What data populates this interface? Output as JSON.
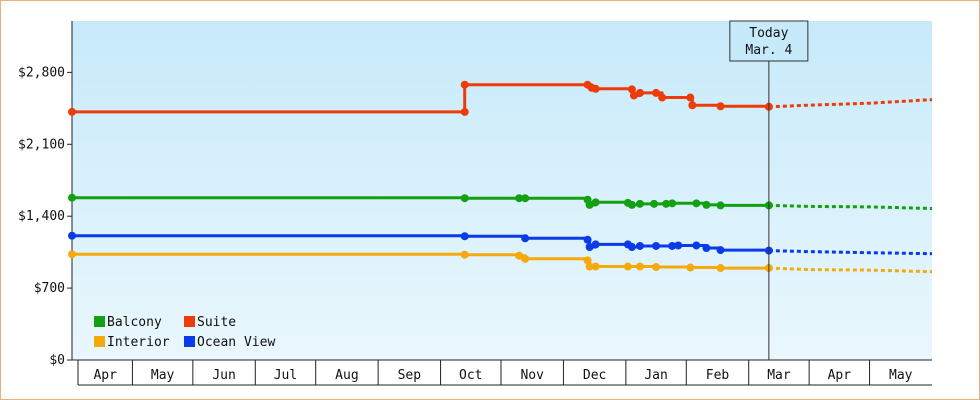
{
  "chart_data": {
    "type": "line",
    "title": "",
    "xlabel": "",
    "ylabel": "",
    "ylim": [
      0,
      3300
    ],
    "y_ticks": [
      0,
      700,
      1400,
      2100,
      2800
    ],
    "y_tick_labels": [
      "$0",
      "$700",
      "$1,400",
      "$2,100",
      "$2,800"
    ],
    "x_domain": [
      "2023-03-24",
      "2024-05-24"
    ],
    "months": [
      {
        "label": "Apr",
        "start": "2023-03-24",
        "end": "2023-04-23"
      },
      {
        "label": "May",
        "start": "2023-04-23",
        "end": "2023-05-23"
      },
      {
        "label": "Jun",
        "start": "2023-05-23",
        "end": "2023-06-23"
      },
      {
        "label": "Jul",
        "start": "2023-06-23",
        "end": "2023-07-23"
      },
      {
        "label": "Aug",
        "start": "2023-07-23",
        "end": "2023-08-23"
      },
      {
        "label": "Sep",
        "start": "2023-08-23",
        "end": "2023-09-23"
      },
      {
        "label": "Oct",
        "start": "2023-09-23",
        "end": "2023-10-23"
      },
      {
        "label": "Nov",
        "start": "2023-10-23",
        "end": "2023-11-23"
      },
      {
        "label": "Dec",
        "start": "2023-11-23",
        "end": "2023-12-24"
      },
      {
        "label": "Jan",
        "start": "2023-12-24",
        "end": "2024-01-23"
      },
      {
        "label": "Feb",
        "start": "2024-01-23",
        "end": "2024-02-23"
      },
      {
        "label": "Mar",
        "start": "2024-02-23",
        "end": "2024-03-24"
      },
      {
        "label": "Apr",
        "start": "2024-03-24",
        "end": "2024-04-23"
      },
      {
        "label": "May",
        "start": "2024-04-23",
        "end": "2024-05-24"
      }
    ],
    "today": {
      "label_line1": "Today",
      "label_line2": "Mar. 4",
      "date": "2024-03-04"
    },
    "legend": {
      "placement": "bottom-left",
      "columns": 2
    },
    "grid": false,
    "series": [
      {
        "name": "Balcony",
        "color": "#13a013",
        "points": [
          {
            "date": "2023-03-24",
            "value": 1580
          },
          {
            "date": "2023-10-05",
            "value": 1575
          },
          {
            "date": "2023-11-01",
            "value": 1575
          },
          {
            "date": "2023-11-04",
            "value": 1575
          },
          {
            "date": "2023-12-05",
            "value": 1560
          },
          {
            "date": "2023-12-06",
            "value": 1510
          },
          {
            "date": "2023-12-09",
            "value": 1535
          },
          {
            "date": "2023-12-25",
            "value": 1530
          },
          {
            "date": "2023-12-27",
            "value": 1510
          },
          {
            "date": "2023-12-31",
            "value": 1520
          },
          {
            "date": "2024-01-07",
            "value": 1520
          },
          {
            "date": "2024-01-13",
            "value": 1520
          },
          {
            "date": "2024-01-16",
            "value": 1525
          },
          {
            "date": "2024-01-28",
            "value": 1525
          },
          {
            "date": "2024-02-02",
            "value": 1510
          },
          {
            "date": "2024-02-09",
            "value": 1505
          },
          {
            "date": "2024-03-04",
            "value": 1505
          }
        ],
        "forecast": [
          {
            "date": "2024-03-04",
            "value": 1505
          },
          {
            "date": "2024-03-24",
            "value": 1495
          },
          {
            "date": "2024-04-23",
            "value": 1490
          },
          {
            "date": "2024-05-24",
            "value": 1475
          }
        ]
      },
      {
        "name": "Suite",
        "color": "#ee3b0a",
        "points": [
          {
            "date": "2023-03-24",
            "value": 2415
          },
          {
            "date": "2023-10-05",
            "value": 2415
          },
          {
            "date": "2023-10-05",
            "value": 2680
          },
          {
            "date": "2023-12-05",
            "value": 2680
          },
          {
            "date": "2023-12-07",
            "value": 2650
          },
          {
            "date": "2023-12-09",
            "value": 2640
          },
          {
            "date": "2023-12-27",
            "value": 2635
          },
          {
            "date": "2023-12-28",
            "value": 2575
          },
          {
            "date": "2023-12-31",
            "value": 2600
          },
          {
            "date": "2024-01-08",
            "value": 2600
          },
          {
            "date": "2024-01-11",
            "value": 2555
          },
          {
            "date": "2024-01-25",
            "value": 2555
          },
          {
            "date": "2024-01-26",
            "value": 2480
          },
          {
            "date": "2024-02-09",
            "value": 2470
          },
          {
            "date": "2024-03-04",
            "value": 2465
          }
        ],
        "forecast": [
          {
            "date": "2024-03-04",
            "value": 2465
          },
          {
            "date": "2024-03-24",
            "value": 2480
          },
          {
            "date": "2024-04-23",
            "value": 2500
          },
          {
            "date": "2024-05-24",
            "value": 2535
          }
        ]
      },
      {
        "name": "Interior",
        "color": "#f5a90c",
        "points": [
          {
            "date": "2023-03-24",
            "value": 1030
          },
          {
            "date": "2023-10-05",
            "value": 1025
          },
          {
            "date": "2023-11-01",
            "value": 1015
          },
          {
            "date": "2023-11-04",
            "value": 985
          },
          {
            "date": "2023-12-05",
            "value": 970
          },
          {
            "date": "2023-12-06",
            "value": 910
          },
          {
            "date": "2023-12-09",
            "value": 910
          },
          {
            "date": "2023-12-25",
            "value": 910
          },
          {
            "date": "2023-12-31",
            "value": 910
          },
          {
            "date": "2024-01-08",
            "value": 905
          },
          {
            "date": "2024-01-25",
            "value": 900
          },
          {
            "date": "2024-02-09",
            "value": 895
          },
          {
            "date": "2024-03-04",
            "value": 895
          }
        ],
        "forecast": [
          {
            "date": "2024-03-04",
            "value": 895
          },
          {
            "date": "2024-03-24",
            "value": 880
          },
          {
            "date": "2024-04-23",
            "value": 875
          },
          {
            "date": "2024-05-24",
            "value": 860
          }
        ]
      },
      {
        "name": "Ocean View",
        "color": "#0a3be8",
        "points": [
          {
            "date": "2023-03-24",
            "value": 1210
          },
          {
            "date": "2023-10-05",
            "value": 1205
          },
          {
            "date": "2023-11-04",
            "value": 1185
          },
          {
            "date": "2023-12-05",
            "value": 1170
          },
          {
            "date": "2023-12-06",
            "value": 1100
          },
          {
            "date": "2023-12-09",
            "value": 1125
          },
          {
            "date": "2023-12-25",
            "value": 1125
          },
          {
            "date": "2023-12-27",
            "value": 1100
          },
          {
            "date": "2023-12-31",
            "value": 1110
          },
          {
            "date": "2024-01-08",
            "value": 1110
          },
          {
            "date": "2024-01-16",
            "value": 1110
          },
          {
            "date": "2024-01-19",
            "value": 1115
          },
          {
            "date": "2024-01-28",
            "value": 1115
          },
          {
            "date": "2024-02-02",
            "value": 1090
          },
          {
            "date": "2024-02-09",
            "value": 1070
          },
          {
            "date": "2024-03-04",
            "value": 1065
          }
        ],
        "forecast": [
          {
            "date": "2024-03-04",
            "value": 1065
          },
          {
            "date": "2024-03-24",
            "value": 1055
          },
          {
            "date": "2024-04-23",
            "value": 1045
          },
          {
            "date": "2024-05-24",
            "value": 1035
          }
        ]
      }
    ]
  }
}
